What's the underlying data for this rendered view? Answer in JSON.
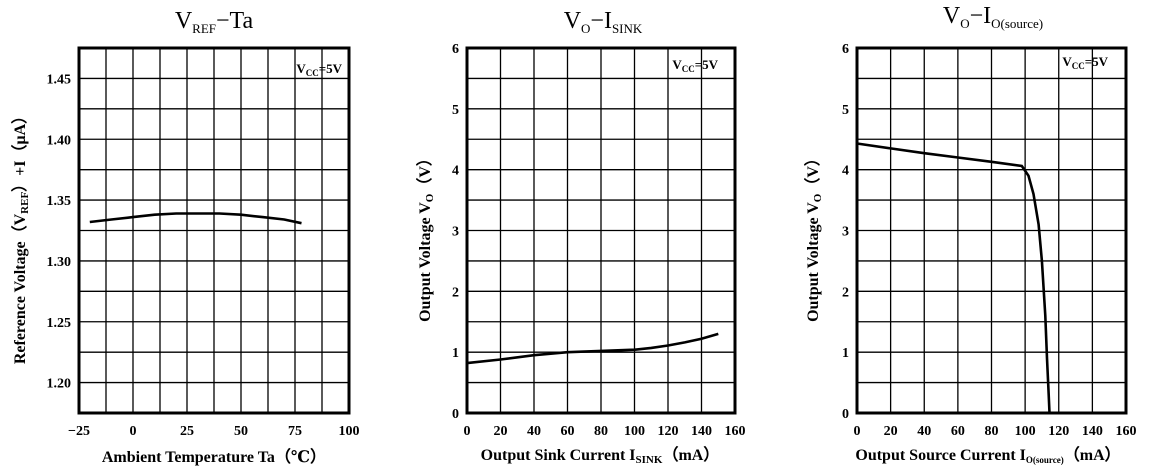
{
  "chart_data": [
    {
      "type": "line",
      "title": "V",
      "title_sub": "REF",
      "title_suffix": "−Ta",
      "condition": "V",
      "condition_sub": "CC",
      "condition_suffix": "=5V",
      "xlabel": "Ambient Temperature Ta（℃）",
      "ylabel_pre": "Reference Voltage（V",
      "ylabel_sub": "REF",
      "ylabel_post": "）+I（μA）",
      "xlim": [
        -25,
        100
      ],
      "ylim": [
        1.175,
        1.475
      ],
      "x_ticks": [
        "−25",
        "0",
        "25",
        "50",
        "75",
        "100"
      ],
      "x_tick_values": [
        -25,
        0,
        25,
        50,
        75,
        100
      ],
      "y_ticks": [
        "1.20",
        "1.25",
        "1.30",
        "1.35",
        "1.40",
        "1.45"
      ],
      "y_tick_values": [
        1.2,
        1.25,
        1.3,
        1.35,
        1.4,
        1.45
      ],
      "grid_x": 10,
      "grid_y": 12,
      "grid": true,
      "series": [
        {
          "x": [
            -20,
            -10,
            0,
            10,
            20,
            25,
            30,
            40,
            50,
            60,
            70,
            78
          ],
          "y": [
            1.332,
            1.334,
            1.336,
            1.338,
            1.339,
            1.339,
            1.339,
            1.339,
            1.338,
            1.336,
            1.334,
            1.331
          ]
        }
      ]
    },
    {
      "type": "line",
      "title": "V",
      "title_sub": "O",
      "title_suffix": "−I",
      "title_sub2": "SINK",
      "condition": "V",
      "condition_sub": "CC",
      "condition_suffix": "=5V",
      "xlabel_pre": "Output Sink Current I",
      "xlabel_sub": "SINK",
      "xlabel_post": "（mA）",
      "ylabel_pre": "Output Voltage V",
      "ylabel_sub": "O",
      "ylabel_post": "（V）",
      "xlim": [
        0,
        160
      ],
      "ylim": [
        0,
        6
      ],
      "x_ticks": [
        "0",
        "20",
        "40",
        "60",
        "80",
        "100",
        "120",
        "140",
        "160"
      ],
      "x_tick_values": [
        0,
        20,
        40,
        60,
        80,
        100,
        120,
        140,
        160
      ],
      "y_ticks": [
        "0",
        "1",
        "2",
        "3",
        "4",
        "5",
        "6"
      ],
      "y_tick_values": [
        0,
        1,
        2,
        3,
        4,
        5,
        6
      ],
      "grid_x": 8,
      "grid_y": 12,
      "grid": true,
      "series": [
        {
          "x": [
            0,
            20,
            40,
            60,
            80,
            100,
            110,
            120,
            130,
            140,
            150
          ],
          "y": [
            0.82,
            0.88,
            0.95,
            1.0,
            1.02,
            1.04,
            1.07,
            1.11,
            1.16,
            1.22,
            1.3
          ]
        }
      ]
    },
    {
      "type": "line",
      "title": "V",
      "title_sub": "O",
      "title_suffix": "−I",
      "title_sub2": "O(source)",
      "condition": "V",
      "condition_sub": "CC",
      "condition_suffix": "=5V",
      "xlabel_pre": "Output Source Current I",
      "xlabel_sub": "O(source)",
      "xlabel_post": "（mA）",
      "ylabel_pre": "Output Voltage V",
      "ylabel_sub": "O",
      "ylabel_post": "（V）",
      "xlim": [
        0,
        160
      ],
      "ylim": [
        0,
        6
      ],
      "x_ticks": [
        "0",
        "20",
        "40",
        "60",
        "80",
        "100",
        "120",
        "140",
        "160"
      ],
      "x_tick_values": [
        0,
        20,
        40,
        60,
        80,
        100,
        120,
        140,
        160
      ],
      "y_ticks": [
        "0",
        "1",
        "2",
        "3",
        "4",
        "5",
        "6"
      ],
      "y_tick_values": [
        0,
        1,
        2,
        3,
        4,
        5,
        6
      ],
      "grid_x": 8,
      "grid_y": 12,
      "grid": true,
      "series": [
        {
          "x": [
            0,
            20,
            40,
            60,
            80,
            98,
            102,
            105,
            108,
            110,
            112,
            113,
            114,
            114.5
          ],
          "y": [
            4.43,
            4.35,
            4.27,
            4.2,
            4.13,
            4.06,
            3.9,
            3.6,
            3.1,
            2.5,
            1.6,
            0.9,
            0.3,
            0
          ]
        }
      ]
    }
  ]
}
